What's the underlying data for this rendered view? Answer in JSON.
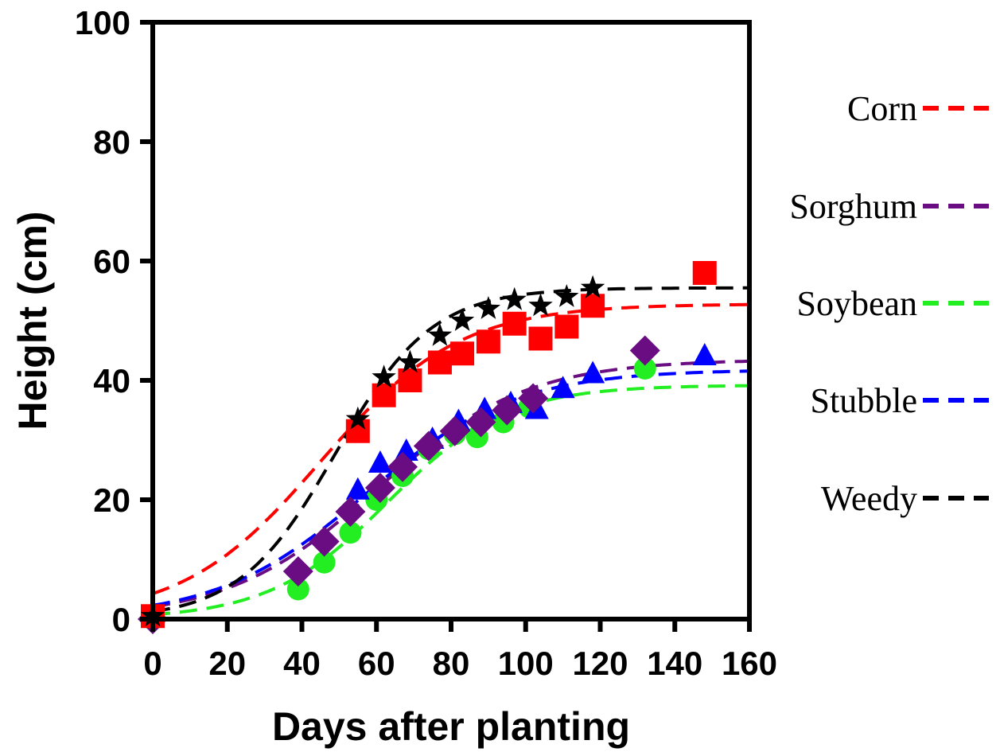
{
  "chart_data": {
    "type": "scatter",
    "xlabel": "Days after planting",
    "ylabel": "Height (cm)",
    "xlim": [
      0,
      160
    ],
    "ylim": [
      0,
      100
    ],
    "x_ticks": [
      0,
      20,
      40,
      60,
      80,
      100,
      120,
      140,
      160
    ],
    "y_ticks": [
      0,
      20,
      40,
      60,
      80,
      100
    ],
    "grid": false,
    "legend_position": "right",
    "series": [
      {
        "name": "Corn",
        "color": "#ff0000",
        "marker": "square",
        "points": [
          [
            0,
            0.5
          ],
          [
            55,
            31.5
          ],
          [
            62,
            37.5
          ],
          [
            69,
            40
          ],
          [
            77,
            43
          ],
          [
            83,
            44.5
          ],
          [
            90,
            46.5
          ],
          [
            97,
            49.5
          ],
          [
            104,
            47
          ],
          [
            111,
            49
          ],
          [
            118,
            52.5
          ],
          [
            148,
            58
          ]
        ],
        "fit": {
          "a": 52.8,
          "b": 18.5,
          "x0": 45
        }
      },
      {
        "name": "Sorghum",
        "color": "#6a0d83",
        "marker": "diamond",
        "points": [
          [
            0,
            0
          ],
          [
            39,
            8
          ],
          [
            46,
            13
          ],
          [
            53,
            18
          ],
          [
            61,
            22
          ],
          [
            67,
            25.5
          ],
          [
            74,
            29
          ],
          [
            81,
            31.5
          ],
          [
            88,
            33
          ],
          [
            95,
            35
          ],
          [
            102,
            37
          ],
          [
            132,
            45
          ]
        ],
        "fit": {
          "a": 43.5,
          "b": 20,
          "x0": 60
        }
      },
      {
        "name": "Soybean",
        "color": "#22ee22",
        "marker": "circle",
        "points": [
          [
            0,
            0
          ],
          [
            39,
            5
          ],
          [
            46,
            9.5
          ],
          [
            53,
            14.5
          ],
          [
            60,
            20
          ],
          [
            67,
            24
          ],
          [
            74,
            28.5
          ],
          [
            81,
            31
          ],
          [
            87,
            30.5
          ],
          [
            94,
            33
          ],
          [
            101,
            35.5
          ],
          [
            132,
            42
          ]
        ],
        "fit": {
          "a": 39.2,
          "b": 16,
          "x0": 63
        }
      },
      {
        "name": "Stubble",
        "color": "#0000ff",
        "marker": "triangle",
        "points": [
          [
            0,
            0
          ],
          [
            55,
            21.5
          ],
          [
            61,
            26
          ],
          [
            68,
            28
          ],
          [
            75,
            30
          ],
          [
            82,
            33
          ],
          [
            89,
            35
          ],
          [
            96,
            36
          ],
          [
            103,
            35
          ],
          [
            110,
            38.5
          ],
          [
            118,
            41
          ],
          [
            148,
            44
          ]
        ],
        "fit": {
          "a": 41.8,
          "b": 20,
          "x0": 57
        }
      },
      {
        "name": "Weedy",
        "color": "#000000",
        "marker": "star",
        "points": [
          [
            0,
            0.5
          ],
          [
            55,
            33.5
          ],
          [
            62,
            40.5
          ],
          [
            69,
            43
          ],
          [
            77,
            47.5
          ],
          [
            83,
            50
          ],
          [
            90,
            52
          ],
          [
            97,
            53.5
          ],
          [
            104,
            52.5
          ],
          [
            111,
            54
          ],
          [
            118,
            55.5
          ]
        ],
        "fit": {
          "a": 55.5,
          "b": 13,
          "x0": 49
        }
      }
    ]
  }
}
